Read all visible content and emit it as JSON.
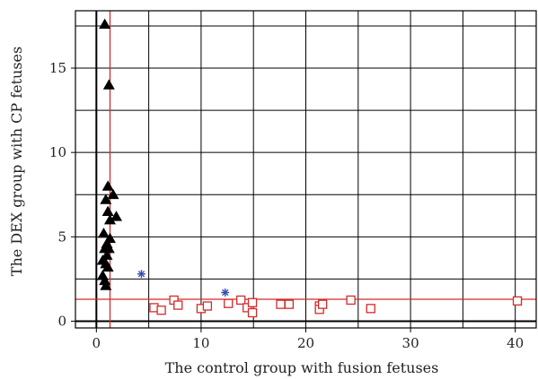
{
  "chart_data": {
    "type": "scatter",
    "title": "",
    "xlabel": "The control group with fusion fetuses",
    "ylabel": "The DEX group with CP fetuses",
    "xlim": [
      -2,
      42
    ],
    "ylim": [
      -0.4,
      18.4
    ],
    "x_ticks": [
      0,
      10,
      20,
      30,
      40
    ],
    "y_ticks": [
      0,
      5,
      10,
      15
    ],
    "x_gridlines": [
      0,
      5,
      10,
      15,
      20,
      25,
      30,
      35,
      40
    ],
    "y_gridlines": [
      0,
      2.5,
      5,
      7.5,
      10,
      12.5,
      15,
      17.5
    ],
    "grid": true,
    "legend": "none",
    "colors": {
      "triangles": "#000000",
      "squares": "#d42a2a",
      "stars": "#3a4fb0",
      "reference_lines": "#d42a2a",
      "grid": "#000000",
      "zero_axis": "#000000"
    },
    "reference_lines": {
      "vertical_x": 1.3,
      "horizontal_y": 1.3
    },
    "series": [
      {
        "marker": "triangle",
        "points": [
          [
            0.8,
            17.6
          ],
          [
            1.2,
            14.0
          ],
          [
            1.1,
            8.0
          ],
          [
            1.6,
            7.5
          ],
          [
            0.9,
            7.2
          ],
          [
            1.1,
            6.5
          ],
          [
            1.9,
            6.2
          ],
          [
            1.3,
            6.0
          ],
          [
            0.7,
            5.2
          ],
          [
            1.3,
            4.9
          ],
          [
            1.0,
            4.6
          ],
          [
            0.8,
            4.3
          ],
          [
            1.2,
            4.3
          ],
          [
            1.0,
            3.9
          ],
          [
            0.6,
            3.6
          ],
          [
            0.9,
            3.4
          ],
          [
            1.1,
            3.2
          ],
          [
            0.6,
            2.7
          ],
          [
            0.8,
            2.4
          ],
          [
            0.9,
            2.1
          ]
        ]
      },
      {
        "marker": "square",
        "points": [
          [
            5.5,
            0.8
          ],
          [
            6.2,
            0.65
          ],
          [
            7.4,
            1.25
          ],
          [
            7.8,
            0.95
          ],
          [
            10.0,
            0.75
          ],
          [
            10.6,
            0.9
          ],
          [
            12.6,
            1.05
          ],
          [
            13.8,
            1.25
          ],
          [
            14.4,
            0.8
          ],
          [
            14.9,
            0.5
          ],
          [
            14.9,
            1.1
          ],
          [
            17.6,
            1.0
          ],
          [
            18.4,
            1.0
          ],
          [
            21.3,
            0.9
          ],
          [
            21.3,
            0.7
          ],
          [
            21.6,
            1.0
          ],
          [
            24.3,
            1.25
          ],
          [
            26.2,
            0.75
          ],
          [
            40.2,
            1.2
          ]
        ]
      },
      {
        "marker": "star",
        "points": [
          [
            4.3,
            2.8
          ],
          [
            12.3,
            1.7
          ]
        ]
      }
    ]
  }
}
